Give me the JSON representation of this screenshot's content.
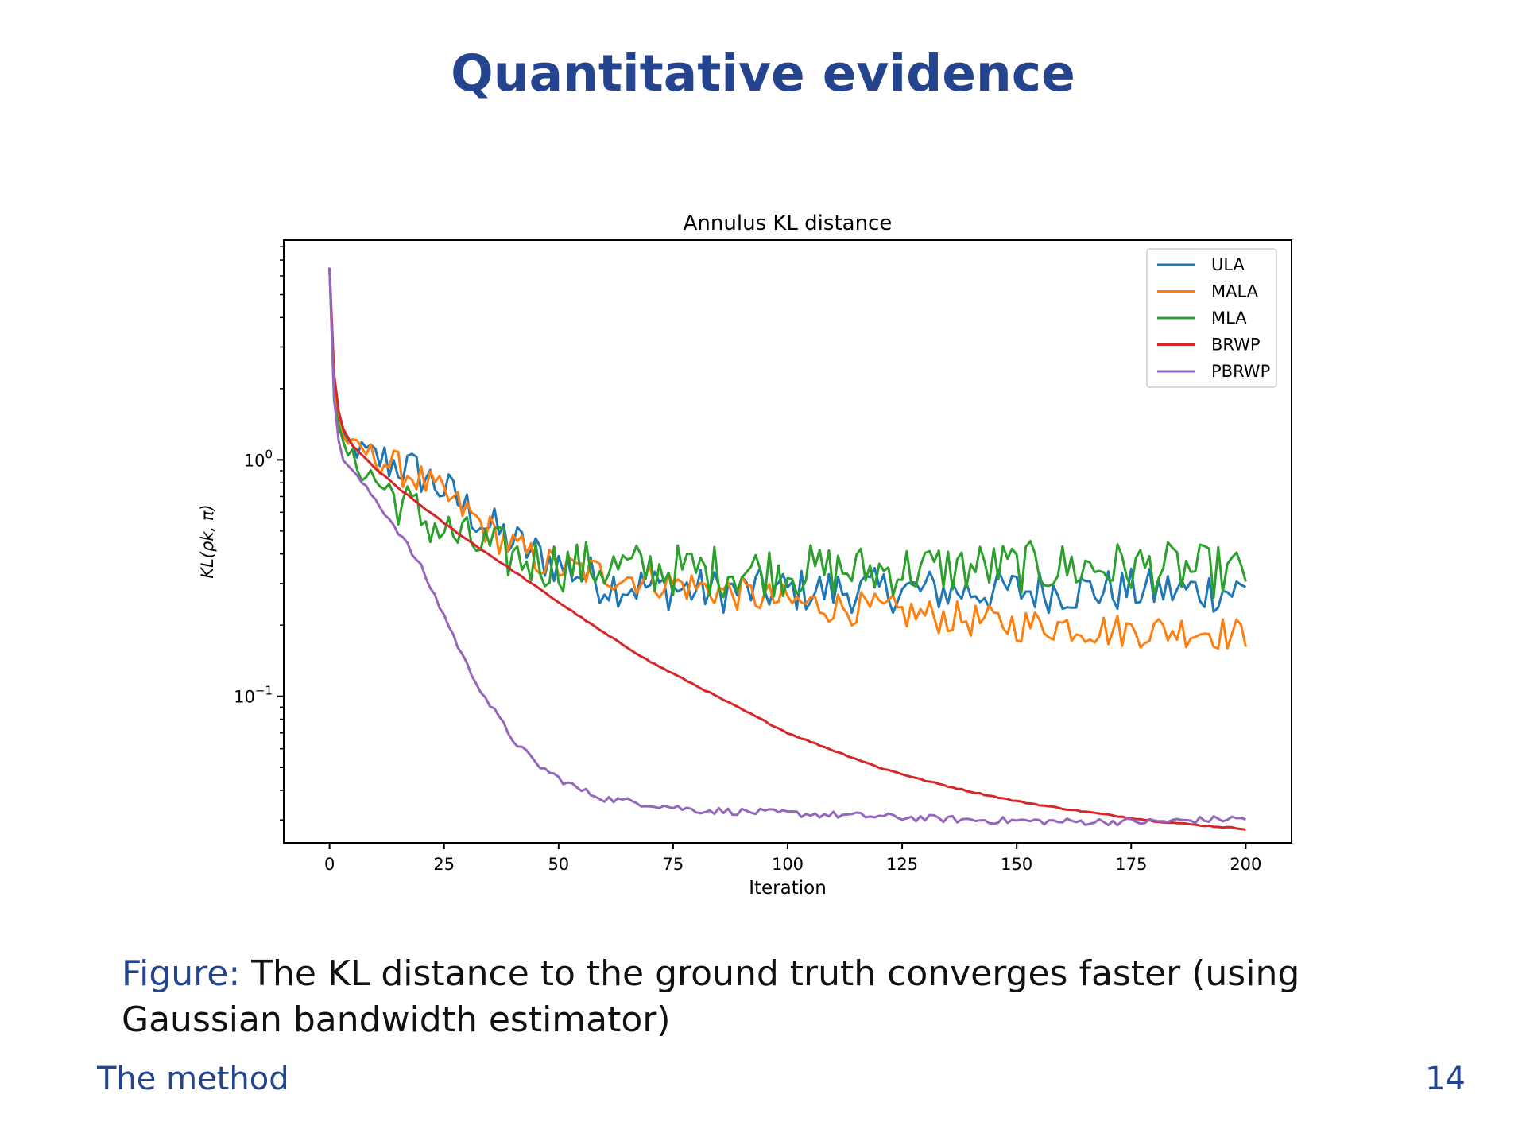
{
  "slide": {
    "title": "Quantitative evidence",
    "caption_label": "Figure:",
    "caption_text": " The KL distance to the ground truth converges faster (using Gaussian bandwidth estimator)",
    "footer_section": "The method",
    "page_number": "14"
  },
  "chart_data": {
    "type": "line",
    "title": "Annulus KL distance",
    "xlabel": "Iteration",
    "ylabel": "KL(ρk, π)",
    "yscale": "log",
    "xlim": [
      -10,
      210
    ],
    "ylim": [
      0.024,
      8.5
    ],
    "xticks": [
      0,
      25,
      50,
      75,
      100,
      125,
      150,
      175,
      200
    ],
    "ytick_labels": [
      {
        "value": 1,
        "base": "10",
        "exp": "0"
      },
      {
        "value": 0.1,
        "base": "10",
        "exp": "−1"
      }
    ],
    "legend_position": "top-right",
    "series": [
      {
        "name": "ULA",
        "color": "#1f77b4",
        "x": [
          0,
          1,
          2,
          3,
          5,
          10,
          15,
          20,
          25,
          30,
          35,
          40,
          45,
          50,
          55,
          60,
          70,
          80,
          100,
          120,
          140,
          160,
          180,
          200
        ],
        "values": [
          6.5,
          2.0,
          1.45,
          1.25,
          1.12,
          1.02,
          0.95,
          0.87,
          0.75,
          0.62,
          0.52,
          0.45,
          0.4,
          0.36,
          0.33,
          0.3,
          0.29,
          0.28,
          0.28,
          0.28,
          0.28,
          0.28,
          0.28,
          0.28
        ]
      },
      {
        "name": "MALA",
        "color": "#ff7f0e",
        "x": [
          0,
          1,
          2,
          3,
          5,
          10,
          15,
          20,
          25,
          30,
          35,
          40,
          45,
          50,
          60,
          70,
          80,
          90,
          100,
          110,
          120,
          130,
          140,
          150,
          160,
          170,
          180,
          190,
          200
        ],
        "values": [
          6.5,
          2.0,
          1.45,
          1.25,
          1.15,
          1.03,
          0.92,
          0.82,
          0.7,
          0.6,
          0.5,
          0.43,
          0.38,
          0.35,
          0.33,
          0.31,
          0.29,
          0.27,
          0.25,
          0.24,
          0.23,
          0.22,
          0.21,
          0.2,
          0.2,
          0.19,
          0.19,
          0.19,
          0.18
        ]
      },
      {
        "name": "MLA",
        "color": "#2ca02c",
        "x": [
          0,
          1,
          2,
          3,
          5,
          10,
          15,
          20,
          25,
          30,
          35,
          40,
          45,
          50,
          60,
          80,
          100,
          120,
          140,
          160,
          180,
          200
        ],
        "values": [
          6.5,
          1.8,
          1.35,
          1.15,
          1.0,
          0.82,
          0.68,
          0.57,
          0.5,
          0.45,
          0.42,
          0.39,
          0.37,
          0.36,
          0.35,
          0.34,
          0.34,
          0.34,
          0.35,
          0.35,
          0.35,
          0.33
        ]
      },
      {
        "name": "BRWP",
        "color": "#d62728",
        "x": [
          0,
          1,
          2,
          3,
          5,
          10,
          15,
          20,
          25,
          30,
          40,
          50,
          60,
          70,
          80,
          90,
          100,
          110,
          120,
          130,
          140,
          150,
          160,
          170,
          180,
          190,
          200
        ],
        "values": [
          6.5,
          2.3,
          1.6,
          1.35,
          1.15,
          0.92,
          0.76,
          0.64,
          0.54,
          0.46,
          0.34,
          0.25,
          0.185,
          0.14,
          0.111,
          0.088,
          0.07,
          0.059,
          0.05,
          0.044,
          0.0395,
          0.036,
          0.0335,
          0.0315,
          0.0297,
          0.0285,
          0.0275
        ]
      },
      {
        "name": "PBRWP",
        "color": "#9467bd",
        "x": [
          0,
          1,
          2,
          3,
          5,
          10,
          15,
          20,
          25,
          30,
          35,
          40,
          45,
          50,
          55,
          60,
          70,
          80,
          100,
          120,
          140,
          160,
          180,
          200
        ],
        "values": [
          6.5,
          1.8,
          1.2,
          1.0,
          0.9,
          0.68,
          0.5,
          0.35,
          0.22,
          0.135,
          0.092,
          0.066,
          0.052,
          0.045,
          0.04,
          0.037,
          0.035,
          0.033,
          0.032,
          0.031,
          0.03,
          0.0295,
          0.0295,
          0.0305
        ]
      }
    ]
  }
}
